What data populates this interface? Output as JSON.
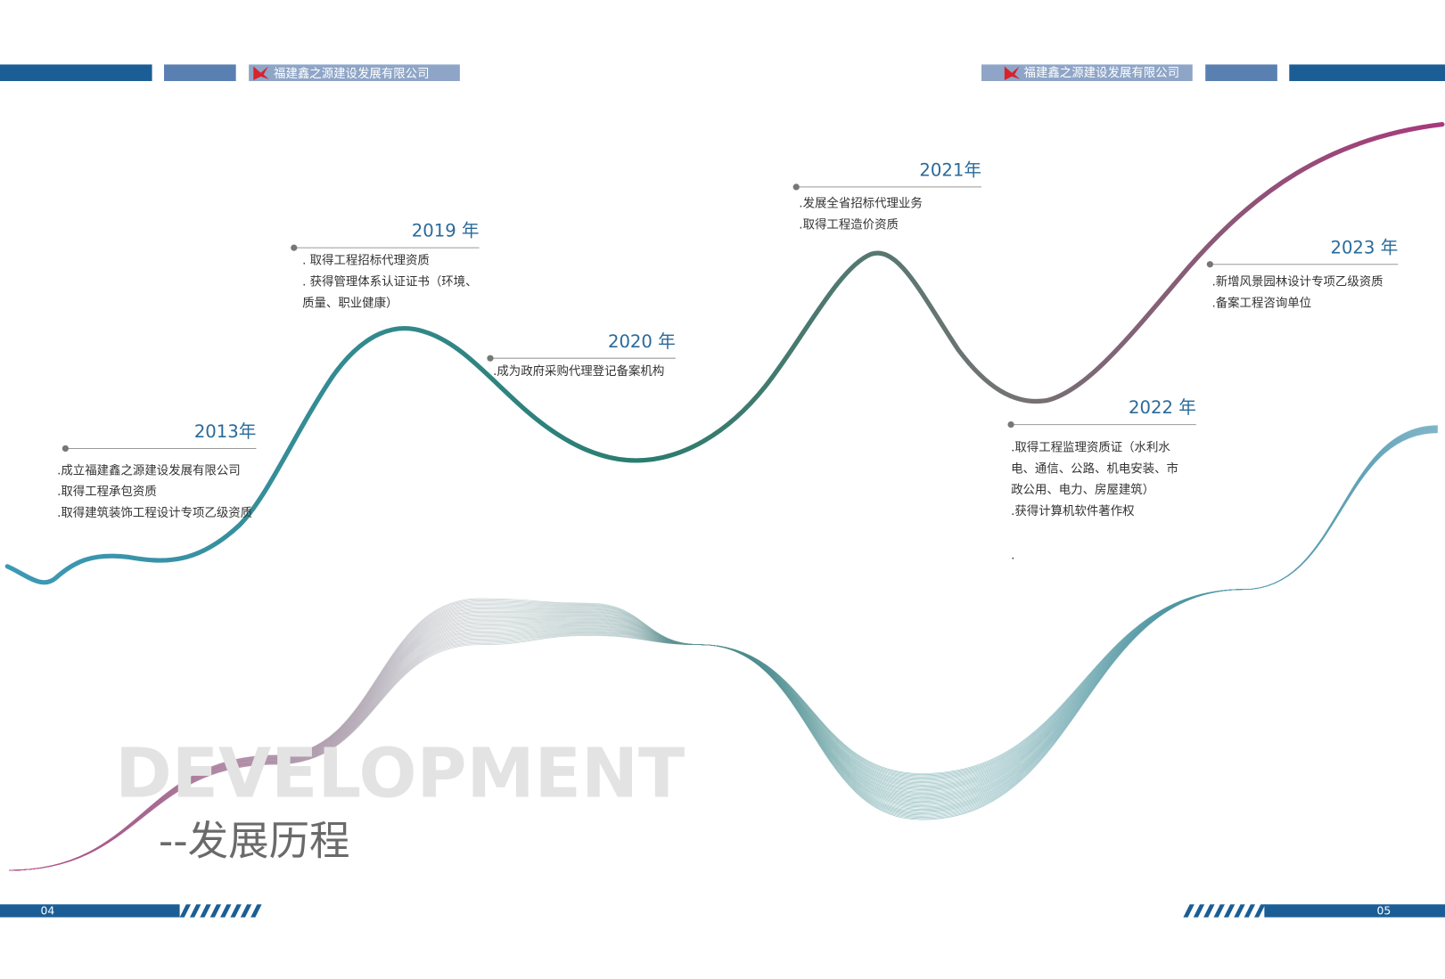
{
  "header": {
    "left_company": "福建鑫之源建设发展有限公司",
    "right_company": "福建鑫之源建设发展有限公司"
  },
  "watermark": "DEVELOPMENT",
  "subtitle": "--发展历程",
  "milestones": [
    {
      "year": "2013年",
      "items": [
        ".成立福建鑫之源建设发展有限公司",
        ".取得工程承包资质",
        ".取得建筑装饰工程设计专项乙级资质"
      ]
    },
    {
      "year": "2019 年",
      "items": [
        ". 取得工程招标代理资质",
        ". 获得管理体系认证证书（环境、",
        "质量、职业健康）"
      ]
    },
    {
      "year": "2020 年",
      "items": [
        ".成为政府采购代理登记备案机构"
      ]
    },
    {
      "year": "2021年",
      "items": [
        ".发展全省招标代理业务",
        ".取得工程造价资质"
      ]
    },
    {
      "year": "2022 年",
      "items": [
        ".取得工程监理资质证（水利水",
        "电、通信、公路、机电安装、市",
        "政公用、电力、房屋建筑）",
        ".获得计算机软件著作权"
      ],
      "note": "."
    },
    {
      "year": "2023 年",
      "items": [
        ".新增风景园林设计专项乙级资质",
        ".备案工程咨询单位"
      ]
    }
  ],
  "footer": {
    "left_page": "04",
    "right_page": "05"
  }
}
